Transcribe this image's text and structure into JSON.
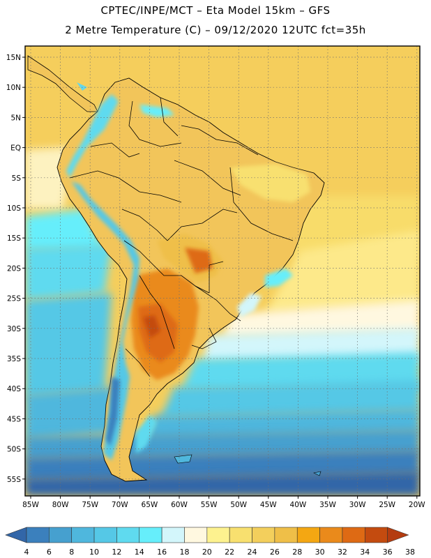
{
  "header": {
    "line1": "CPTEC/INPE/MCT –  Eta Model 15km – GFS",
    "line2": "2 Metre Temperature (C) – 09/12/2020 12UTC fct=35h"
  },
  "map": {
    "region": "South America",
    "lat_labels": [
      "15N",
      "10N",
      "5N",
      "EQ",
      "5S",
      "10S",
      "15S",
      "20S",
      "25S",
      "30S",
      "35S",
      "40S",
      "45S",
      "50S",
      "55S"
    ],
    "lon_labels": [
      "85W",
      "80W",
      "75W",
      "70W",
      "65W",
      "60W",
      "55W",
      "50W",
      "45W",
      "40W",
      "35W",
      "30W",
      "25W",
      "20W"
    ],
    "grid": true,
    "colors": {
      "ocean_warm": "#f5ce5c",
      "ocean_mid": "#fde98a",
      "land_warm": "#f2c55a",
      "hot": "#d8751e",
      "very_hot": "#c4561a",
      "cool_ocean": "#5fdfea",
      "cold_ocean": "#3a8fc4",
      "coldest_ocean": "#2c6aa8"
    }
  },
  "colorbar": {
    "labels": [
      "4",
      "6",
      "8",
      "10",
      "12",
      "14",
      "16",
      "18",
      "20",
      "22",
      "24",
      "26",
      "28",
      "30",
      "32",
      "34",
      "36",
      "38"
    ],
    "colors": [
      "#3266a8",
      "#3b80bd",
      "#46a0cf",
      "#4fb7dd",
      "#55c8e6",
      "#5fdaef",
      "#66eefb",
      "#d3f6fb",
      "#fff8e0",
      "#fdf28f",
      "#f8e06f",
      "#f3cf5c",
      "#efbf48",
      "#f4a712",
      "#ea8a1b",
      "#de6a14",
      "#c44b0f",
      "#b43c10"
    ]
  }
}
